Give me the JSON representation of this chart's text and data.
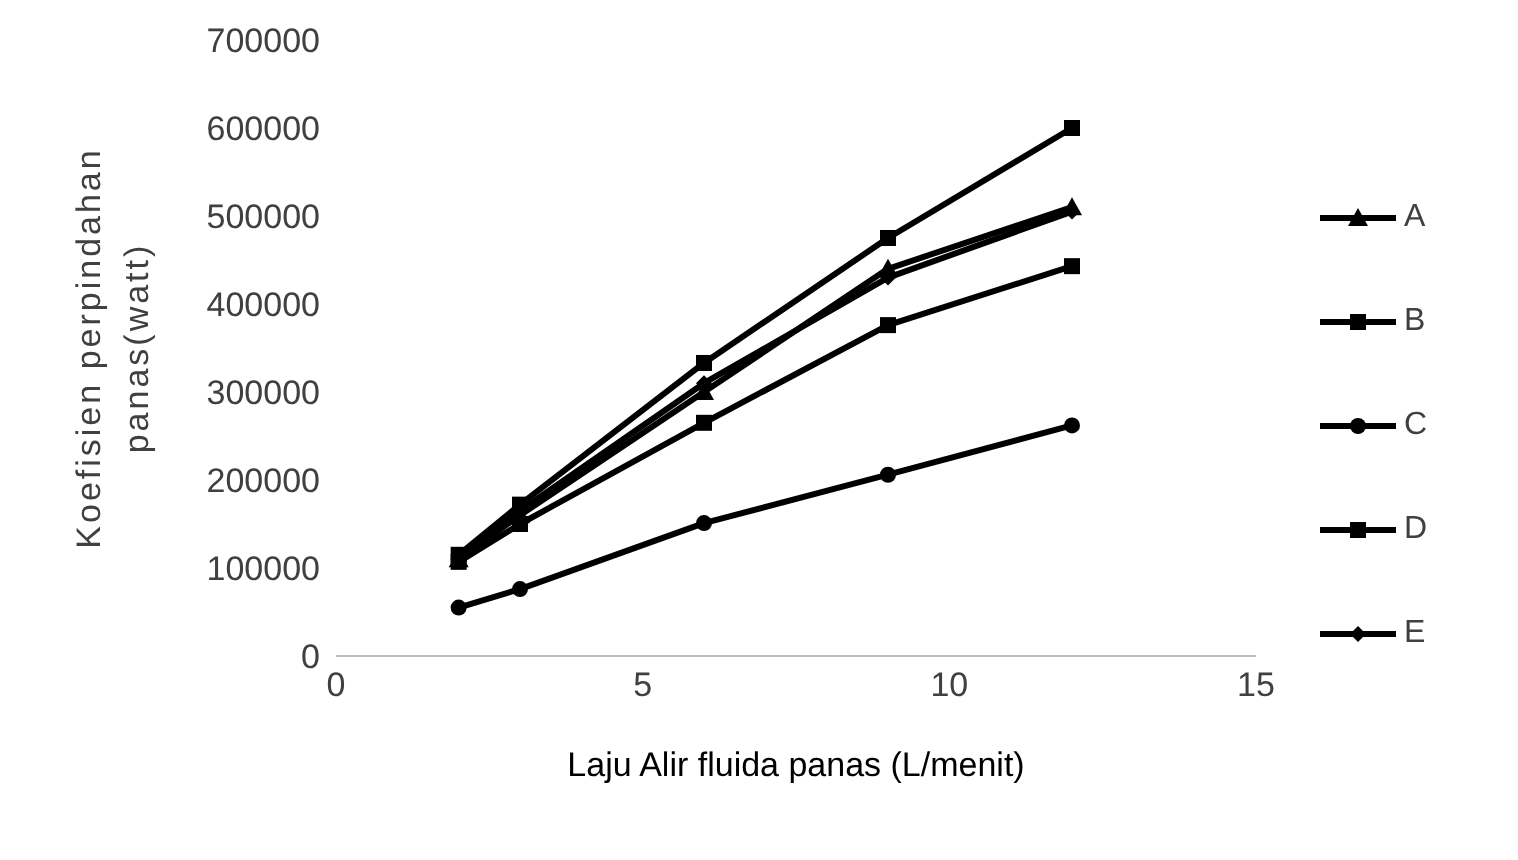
{
  "chart_data": {
    "type": "line",
    "xlabel": "Laju Alir fluida panas (L/menit)",
    "ylabel": "Koefisien perpindahan panas(watt)",
    "x": [
      2,
      3,
      6,
      9,
      12
    ],
    "xlim": [
      0,
      15
    ],
    "xticks": [
      0,
      5,
      10,
      15
    ],
    "ylim": [
      0,
      700000
    ],
    "yticks": [
      0,
      100000,
      200000,
      300000,
      400000,
      500000,
      600000,
      700000
    ],
    "grid": false,
    "legend": "right",
    "line_style": "solid",
    "series": [
      {
        "name": "A",
        "color": "#000000",
        "marker": "triangle",
        "values": [
          110000,
          160000,
          300000,
          440000,
          510000
        ]
      },
      {
        "name": "B",
        "color": "#000000",
        "marker": "square",
        "values": [
          107000,
          150000,
          265000,
          376000,
          443000
        ]
      },
      {
        "name": "C",
        "color": "#000000",
        "marker": "circle",
        "values": [
          55000,
          76000,
          151000,
          206000,
          262000
        ]
      },
      {
        "name": "D",
        "color": "#000000",
        "marker": "square",
        "values": [
          115000,
          172000,
          333000,
          475000,
          600000
        ]
      },
      {
        "name": "E",
        "color": "#000000",
        "marker": "diamond",
        "values": [
          110000,
          165000,
          310000,
          430000,
          505000
        ]
      }
    ]
  }
}
